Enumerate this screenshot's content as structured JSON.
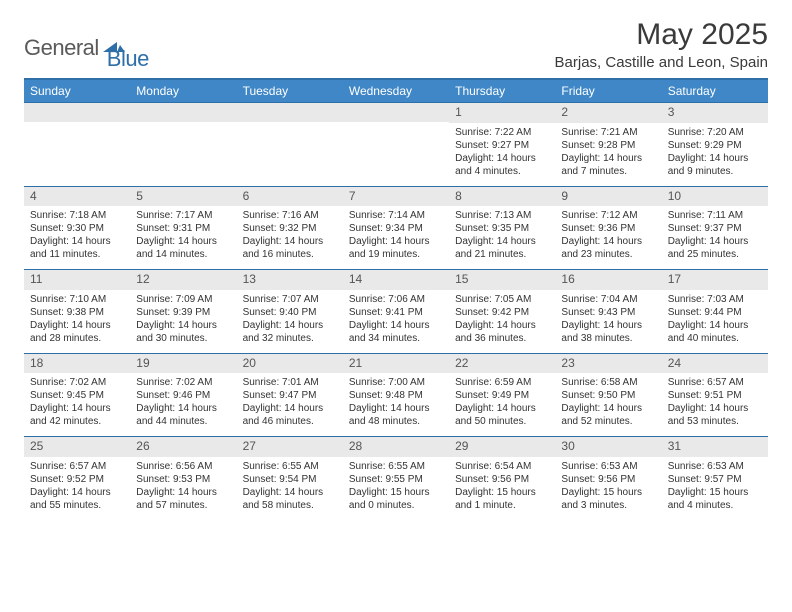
{
  "brand": {
    "general": "General",
    "blue": "Blue"
  },
  "title": "May 2025",
  "location": "Barjas, Castille and Leon, Spain",
  "colors": {
    "header_bg": "#3f87c6",
    "border": "#2f6fa8",
    "daynum_bg": "#e9e9e9",
    "text": "#333333",
    "logo_gray": "#5a5a5a",
    "logo_blue": "#2f6fa8"
  },
  "dayHeaders": [
    "Sunday",
    "Monday",
    "Tuesday",
    "Wednesday",
    "Thursday",
    "Friday",
    "Saturday"
  ],
  "weeks": [
    [
      null,
      null,
      null,
      null,
      {
        "n": "1",
        "sr": "7:22 AM",
        "ss": "9:27 PM",
        "dl": "14 hours and 4 minutes."
      },
      {
        "n": "2",
        "sr": "7:21 AM",
        "ss": "9:28 PM",
        "dl": "14 hours and 7 minutes."
      },
      {
        "n": "3",
        "sr": "7:20 AM",
        "ss": "9:29 PM",
        "dl": "14 hours and 9 minutes."
      }
    ],
    [
      {
        "n": "4",
        "sr": "7:18 AM",
        "ss": "9:30 PM",
        "dl": "14 hours and 11 minutes."
      },
      {
        "n": "5",
        "sr": "7:17 AM",
        "ss": "9:31 PM",
        "dl": "14 hours and 14 minutes."
      },
      {
        "n": "6",
        "sr": "7:16 AM",
        "ss": "9:32 PM",
        "dl": "14 hours and 16 minutes."
      },
      {
        "n": "7",
        "sr": "7:14 AM",
        "ss": "9:34 PM",
        "dl": "14 hours and 19 minutes."
      },
      {
        "n": "8",
        "sr": "7:13 AM",
        "ss": "9:35 PM",
        "dl": "14 hours and 21 minutes."
      },
      {
        "n": "9",
        "sr": "7:12 AM",
        "ss": "9:36 PM",
        "dl": "14 hours and 23 minutes."
      },
      {
        "n": "10",
        "sr": "7:11 AM",
        "ss": "9:37 PM",
        "dl": "14 hours and 25 minutes."
      }
    ],
    [
      {
        "n": "11",
        "sr": "7:10 AM",
        "ss": "9:38 PM",
        "dl": "14 hours and 28 minutes."
      },
      {
        "n": "12",
        "sr": "7:09 AM",
        "ss": "9:39 PM",
        "dl": "14 hours and 30 minutes."
      },
      {
        "n": "13",
        "sr": "7:07 AM",
        "ss": "9:40 PM",
        "dl": "14 hours and 32 minutes."
      },
      {
        "n": "14",
        "sr": "7:06 AM",
        "ss": "9:41 PM",
        "dl": "14 hours and 34 minutes."
      },
      {
        "n": "15",
        "sr": "7:05 AM",
        "ss": "9:42 PM",
        "dl": "14 hours and 36 minutes."
      },
      {
        "n": "16",
        "sr": "7:04 AM",
        "ss": "9:43 PM",
        "dl": "14 hours and 38 minutes."
      },
      {
        "n": "17",
        "sr": "7:03 AM",
        "ss": "9:44 PM",
        "dl": "14 hours and 40 minutes."
      }
    ],
    [
      {
        "n": "18",
        "sr": "7:02 AM",
        "ss": "9:45 PM",
        "dl": "14 hours and 42 minutes."
      },
      {
        "n": "19",
        "sr": "7:02 AM",
        "ss": "9:46 PM",
        "dl": "14 hours and 44 minutes."
      },
      {
        "n": "20",
        "sr": "7:01 AM",
        "ss": "9:47 PM",
        "dl": "14 hours and 46 minutes."
      },
      {
        "n": "21",
        "sr": "7:00 AM",
        "ss": "9:48 PM",
        "dl": "14 hours and 48 minutes."
      },
      {
        "n": "22",
        "sr": "6:59 AM",
        "ss": "9:49 PM",
        "dl": "14 hours and 50 minutes."
      },
      {
        "n": "23",
        "sr": "6:58 AM",
        "ss": "9:50 PM",
        "dl": "14 hours and 52 minutes."
      },
      {
        "n": "24",
        "sr": "6:57 AM",
        "ss": "9:51 PM",
        "dl": "14 hours and 53 minutes."
      }
    ],
    [
      {
        "n": "25",
        "sr": "6:57 AM",
        "ss": "9:52 PM",
        "dl": "14 hours and 55 minutes."
      },
      {
        "n": "26",
        "sr": "6:56 AM",
        "ss": "9:53 PM",
        "dl": "14 hours and 57 minutes."
      },
      {
        "n": "27",
        "sr": "6:55 AM",
        "ss": "9:54 PM",
        "dl": "14 hours and 58 minutes."
      },
      {
        "n": "28",
        "sr": "6:55 AM",
        "ss": "9:55 PM",
        "dl": "15 hours and 0 minutes."
      },
      {
        "n": "29",
        "sr": "6:54 AM",
        "ss": "9:56 PM",
        "dl": "15 hours and 1 minute."
      },
      {
        "n": "30",
        "sr": "6:53 AM",
        "ss": "9:56 PM",
        "dl": "15 hours and 3 minutes."
      },
      {
        "n": "31",
        "sr": "6:53 AM",
        "ss": "9:57 PM",
        "dl": "15 hours and 4 minutes."
      }
    ]
  ],
  "labels": {
    "sunrise": "Sunrise: ",
    "sunset": "Sunset: ",
    "daylight": "Daylight: "
  }
}
